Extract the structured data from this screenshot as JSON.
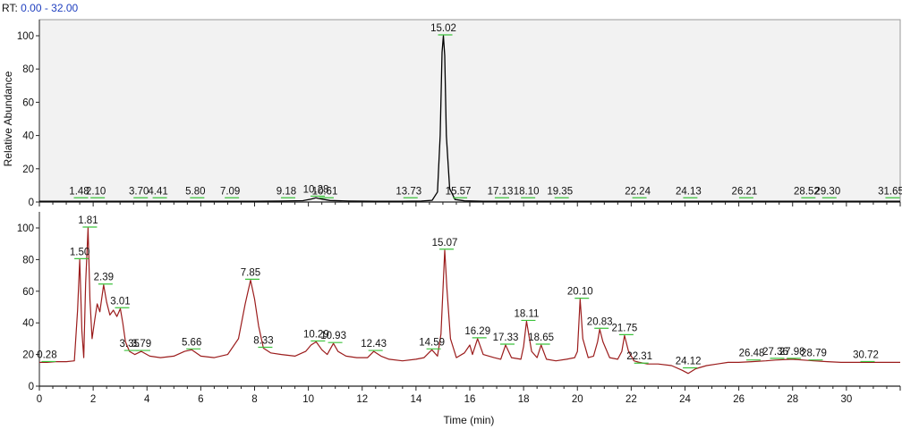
{
  "header": {
    "rt_prefix": "RT:",
    "rt_range": "0.00 - 32.00"
  },
  "colors": {
    "top_trace": "#000000",
    "bottom_trace": "#9b1c1c",
    "rt_text": "#1f3fbf",
    "baseline_marks": "#3cc23c",
    "panel_fill": "#f2f2f2"
  },
  "chart_data": [
    {
      "type": "line",
      "panel": "top",
      "ylabel": "Relative Abundance",
      "ylim": [
        0,
        100
      ],
      "yticks": [
        0,
        20,
        40,
        60,
        80,
        100
      ],
      "xlim": [
        0,
        32
      ],
      "grid": false,
      "series": [
        {
          "x": [
            0.0,
            1.0,
            2.0,
            3.0,
            4.0,
            5.0,
            6.0,
            7.0,
            8.0,
            9.0,
            9.8,
            10.1,
            10.28,
            10.5,
            10.8,
            11.5,
            12.5,
            13.5,
            14.2,
            14.6,
            14.8,
            14.9,
            14.97,
            15.02,
            15.07,
            15.13,
            15.25,
            15.45,
            15.8,
            16.5,
            18.0,
            20.0,
            22.0,
            24.0,
            26.0,
            28.0,
            30.0,
            32.0
          ],
          "y": [
            0.5,
            0.5,
            0.5,
            0.5,
            0.5,
            0.5,
            0.5,
            0.5,
            0.5,
            0.6,
            0.8,
            1.8,
            2.5,
            1.8,
            0.9,
            0.6,
            0.5,
            0.5,
            0.6,
            1.0,
            6.0,
            40.0,
            90.0,
            100.0,
            88.0,
            40.0,
            8.0,
            1.5,
            0.7,
            0.5,
            0.5,
            0.5,
            0.5,
            0.5,
            0.5,
            0.5,
            0.5,
            0.5
          ]
        }
      ],
      "peak_labels": [
        {
          "rt": 1.48,
          "text": "1.48",
          "y": 2
        },
        {
          "rt": 2.1,
          "text": "2.10",
          "y": 2
        },
        {
          "rt": 3.7,
          "text": "3.70",
          "y": 2
        },
        {
          "rt": 4.41,
          "text": "4.41",
          "y": 2
        },
        {
          "rt": 5.8,
          "text": "5.80",
          "y": 2
        },
        {
          "rt": 7.09,
          "text": "7.09",
          "y": 2
        },
        {
          "rt": 9.18,
          "text": "9.18",
          "y": 2
        },
        {
          "rt": 10.28,
          "text": "10.28",
          "y": 3
        },
        {
          "rt": 10.61,
          "text": "10.61",
          "y": 2
        },
        {
          "rt": 13.73,
          "text": "13.73",
          "y": 2
        },
        {
          "rt": 15.02,
          "text": "15.02",
          "y": 100
        },
        {
          "rt": 15.57,
          "text": "15.57",
          "y": 2
        },
        {
          "rt": 17.13,
          "text": "17.13",
          "y": 2
        },
        {
          "rt": 18.1,
          "text": "18.10",
          "y": 2
        },
        {
          "rt": 19.35,
          "text": "19.35",
          "y": 2
        },
        {
          "rt": 22.24,
          "text": "22.24",
          "y": 2
        },
        {
          "rt": 24.13,
          "text": "24.13",
          "y": 2
        },
        {
          "rt": 26.21,
          "text": "26.21",
          "y": 2
        },
        {
          "rt": 28.52,
          "text": "28.52",
          "y": 2
        },
        {
          "rt": 29.3,
          "text": "29.30",
          "y": 2
        },
        {
          "rt": 31.65,
          "text": "31.65",
          "y": 2
        }
      ]
    },
    {
      "type": "line",
      "panel": "bottom",
      "ylim": [
        0,
        100
      ],
      "yticks": [
        0,
        20,
        40,
        60,
        80,
        100
      ],
      "xlim": [
        0,
        32
      ],
      "xticks": [
        0,
        2,
        4,
        6,
        8,
        10,
        12,
        14,
        16,
        18,
        20,
        22,
        24,
        26,
        28,
        30
      ],
      "xlabel": "Time (min)",
      "grid": false,
      "series": [
        {
          "x": [
            0.0,
            0.28,
            0.6,
            1.0,
            1.3,
            1.42,
            1.5,
            1.58,
            1.65,
            1.72,
            1.81,
            1.88,
            1.96,
            2.06,
            2.15,
            2.25,
            2.39,
            2.5,
            2.62,
            2.75,
            2.88,
            3.01,
            3.1,
            3.2,
            3.35,
            3.55,
            3.79,
            4.1,
            4.5,
            5.0,
            5.4,
            5.66,
            6.0,
            6.5,
            7.0,
            7.4,
            7.65,
            7.85,
            8.0,
            8.15,
            8.33,
            8.6,
            9.0,
            9.5,
            9.9,
            10.1,
            10.29,
            10.5,
            10.7,
            10.93,
            11.1,
            11.4,
            11.8,
            12.2,
            12.43,
            12.7,
            13.0,
            13.5,
            14.0,
            14.3,
            14.59,
            14.8,
            14.93,
            15.07,
            15.15,
            15.28,
            15.5,
            15.8,
            16.0,
            16.1,
            16.29,
            16.5,
            16.9,
            17.15,
            17.33,
            17.55,
            17.9,
            18.0,
            18.11,
            18.3,
            18.5,
            18.65,
            18.85,
            19.2,
            19.6,
            19.9,
            20.0,
            20.1,
            20.2,
            20.4,
            20.6,
            20.75,
            20.83,
            20.95,
            21.2,
            21.5,
            21.65,
            21.75,
            21.9,
            22.1,
            22.31,
            22.6,
            23.0,
            23.5,
            23.9,
            24.12,
            24.4,
            24.8,
            25.2,
            25.6,
            26.0,
            26.48,
            27.0,
            27.36,
            27.98,
            28.4,
            28.79,
            29.3,
            29.8,
            30.3,
            30.72,
            31.2,
            31.6,
            32.0
          ],
          "y": [
            15,
            15,
            15.5,
            15.5,
            16,
            48,
            80,
            35,
            18,
            65,
            100,
            55,
            30,
            42,
            52,
            47,
            64,
            53,
            45,
            48,
            44,
            49,
            40,
            28,
            22,
            20,
            22,
            19,
            18,
            19,
            22,
            23,
            19,
            18,
            20,
            30,
            52,
            67,
            55,
            38,
            24,
            21,
            20,
            19,
            22,
            26,
            28,
            23,
            20,
            27,
            22,
            19,
            18,
            18,
            22,
            19,
            17,
            16,
            17,
            18,
            23,
            19,
            33,
            86,
            62,
            30,
            18,
            21,
            26,
            20,
            30,
            20,
            18,
            17,
            26,
            18,
            17,
            25,
            41,
            22,
            18,
            26,
            17,
            16,
            17,
            18,
            22,
            55,
            30,
            18,
            19,
            28,
            36,
            28,
            18,
            17,
            22,
            32,
            22,
            16,
            15,
            14,
            14,
            13,
            10,
            8,
            11,
            13,
            14,
            15,
            15,
            15.5,
            16,
            16.5,
            17,
            16.5,
            16,
            15.5,
            15,
            15,
            15,
            15,
            15,
            15
          ]
        }
      ],
      "peak_labels": [
        {
          "rt": 0.28,
          "text": "0.28",
          "y": 15
        },
        {
          "rt": 1.5,
          "text": "1.50",
          "y": 80
        },
        {
          "rt": 1.81,
          "text": "1.81",
          "y": 100
        },
        {
          "rt": 2.39,
          "text": "2.39",
          "y": 64
        },
        {
          "rt": 3.01,
          "text": "3.01",
          "y": 49
        },
        {
          "rt": 3.35,
          "text": "3.35",
          "y": 22
        },
        {
          "rt": 3.79,
          "text": "3.79",
          "y": 22
        },
        {
          "rt": 5.66,
          "text": "5.66",
          "y": 23
        },
        {
          "rt": 7.85,
          "text": "7.85",
          "y": 67
        },
        {
          "rt": 8.33,
          "text": "8.33",
          "y": 24
        },
        {
          "rt": 10.29,
          "text": "10.29",
          "y": 28
        },
        {
          "rt": 10.93,
          "text": "10.93",
          "y": 27
        },
        {
          "rt": 12.43,
          "text": "12.43",
          "y": 22
        },
        {
          "rt": 14.59,
          "text": "14.59",
          "y": 23
        },
        {
          "rt": 15.07,
          "text": "15.07",
          "y": 86
        },
        {
          "rt": 16.29,
          "text": "16.29",
          "y": 30
        },
        {
          "rt": 17.33,
          "text": "17.33",
          "y": 26
        },
        {
          "rt": 18.11,
          "text": "18.11",
          "y": 41
        },
        {
          "rt": 18.65,
          "text": "18.65",
          "y": 26
        },
        {
          "rt": 20.1,
          "text": "20.10",
          "y": 55
        },
        {
          "rt": 20.83,
          "text": "20.83",
          "y": 36
        },
        {
          "rt": 21.75,
          "text": "21.75",
          "y": 32
        },
        {
          "rt": 22.31,
          "text": "22.31",
          "y": 14
        },
        {
          "rt": 24.12,
          "text": "24.12",
          "y": 11
        },
        {
          "rt": 26.48,
          "text": "26.48",
          "y": 16
        },
        {
          "rt": 27.36,
          "text": "27.36",
          "y": 17
        },
        {
          "rt": 27.98,
          "text": "27.98",
          "y": 17
        },
        {
          "rt": 28.79,
          "text": "28.79",
          "y": 16
        },
        {
          "rt": 30.72,
          "text": "30.72",
          "y": 15
        }
      ]
    }
  ]
}
